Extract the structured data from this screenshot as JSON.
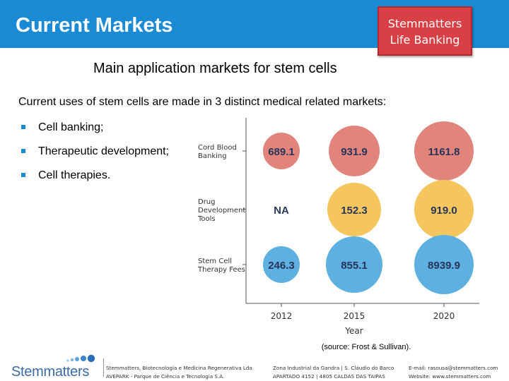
{
  "header": {
    "title": "Current Markets",
    "badge_line1": "Stemmatters",
    "badge_line2": "Life Banking"
  },
  "slide": {
    "subtitle": "Main application markets for stem cells",
    "intro": "Current uses of stem cells are made in 3 distinct medical related markets:",
    "bullets": [
      "Cell banking;",
      "Therapeutic development;",
      "Cell therapies."
    ]
  },
  "chart_data": {
    "type": "bubble",
    "x_label": "Year",
    "x_ticks": [
      "2012",
      "2015",
      "2020"
    ],
    "rows": [
      {
        "label_lines": [
          "Cord Blood",
          "Banking"
        ],
        "color": "#e0847c",
        "values": [
          "689.1",
          "931.9",
          "1161.8"
        ]
      },
      {
        "label_lines": [
          "Drug",
          "Development",
          "Tools"
        ],
        "color": "#f6c65e",
        "values": [
          "NA",
          "152.3",
          "919.0"
        ]
      },
      {
        "label_lines": [
          "Stem Cell",
          "Therapy Fees"
        ],
        "color": "#5db0df",
        "values": [
          "246.3",
          "855.1",
          "8939.9"
        ]
      }
    ],
    "source": "(source: Frost & Sullivan)."
  },
  "footer": {
    "logo_text": "Stemmatters",
    "col1": [
      "Stemmatters, Biotecnologia e Medicina Regenerativa Lda",
      "AVEPARK - Parque de Ciência e Tecnologia S.A."
    ],
    "col2": [
      "Zona Industrial da Gandra | S. Cláudio do Barco",
      "APARTADO 4152 | 4805 CALDAS DAS TAIPAS"
    ],
    "col3": [
      "E-mail: rasousa@stemmatters.com",
      "Website: www.stemmatters.com"
    ]
  }
}
